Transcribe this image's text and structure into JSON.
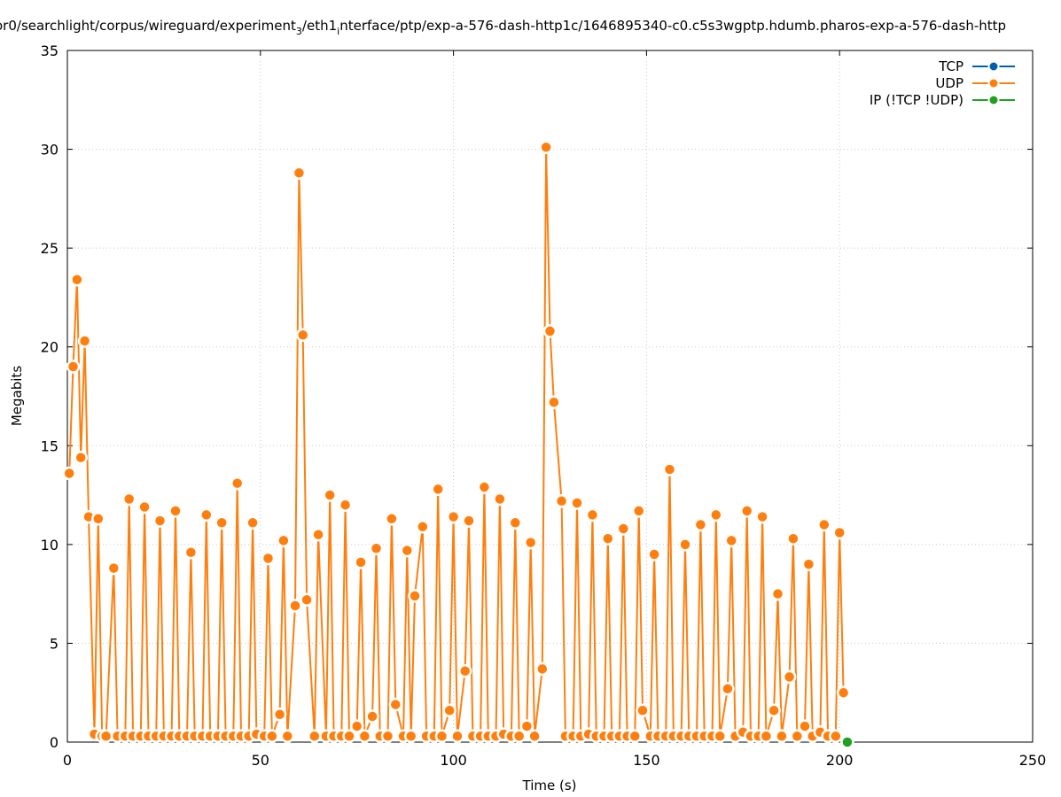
{
  "chart_data": {
    "type": "line",
    "title_parts": {
      "before_sub3": "or0/searchlight/corpus/wireguard/experiment",
      "sub3": "3",
      "after_sub3": "/eth1",
      "sub_i": "i",
      "rest": "nterface/ptp/exp-a-576-dash-http1c/1646895340-c0.c5s3wgptp.hdumb.pharos-exp-a-576-dash-http"
    },
    "xlabel": "Time (s)",
    "ylabel": "Megabits",
    "xlim": [
      0,
      250
    ],
    "ylim": [
      0,
      35
    ],
    "xticks": [
      0,
      50,
      100,
      150,
      200,
      250
    ],
    "yticks": [
      0,
      5,
      10,
      15,
      20,
      25,
      30,
      35
    ],
    "grid": true,
    "legend_position": "top-right",
    "series": [
      {
        "name": "TCP",
        "color": "#0060ad",
        "x": [],
        "y": []
      },
      {
        "name": "UDP",
        "color": "#ff7f0e",
        "x": [
          0.5,
          1.5,
          2.5,
          3.5,
          4.5,
          5.5,
          7,
          8,
          9,
          10,
          12,
          13,
          15,
          16,
          17,
          19,
          20,
          21,
          23,
          24,
          25,
          27,
          28,
          29,
          31,
          32,
          33,
          35,
          36,
          37,
          39,
          40,
          41,
          43,
          44,
          45,
          47,
          48,
          49,
          51,
          52,
          53,
          55,
          56,
          57,
          59,
          60,
          61,
          62,
          64,
          65,
          67,
          68,
          69,
          71,
          72,
          73,
          75,
          76,
          77,
          79,
          80,
          81,
          83,
          84,
          85,
          87,
          88,
          89,
          90,
          92,
          93,
          95,
          96,
          97,
          99,
          100,
          101,
          103,
          104,
          105,
          107,
          108,
          109,
          111,
          112,
          113,
          115,
          116,
          117,
          119,
          120,
          121,
          123,
          124,
          125,
          126,
          128,
          129,
          131,
          132,
          133,
          135,
          136,
          137,
          139,
          140,
          141,
          143,
          144,
          145,
          147,
          148,
          149,
          151,
          152,
          153,
          155,
          156,
          157,
          159,
          160,
          161,
          163,
          164,
          165,
          167,
          168,
          169,
          171,
          172,
          173,
          175,
          176,
          177,
          179,
          180,
          181,
          183,
          184,
          185,
          187,
          188,
          189,
          191,
          192,
          193,
          195,
          196,
          197,
          199,
          200,
          201
        ],
        "y": [
          13.6,
          19.0,
          23.4,
          14.4,
          20.3,
          11.4,
          0.4,
          11.3,
          0.3,
          0.3,
          8.8,
          0.3,
          0.3,
          12.3,
          0.3,
          0.3,
          11.9,
          0.3,
          0.3,
          11.2,
          0.3,
          0.3,
          11.7,
          0.3,
          0.3,
          9.6,
          0.3,
          0.3,
          11.5,
          0.3,
          0.3,
          11.1,
          0.3,
          0.3,
          13.1,
          0.3,
          0.3,
          11.1,
          0.4,
          0.3,
          9.3,
          0.3,
          1.4,
          10.2,
          0.3,
          6.9,
          28.8,
          20.6,
          7.2,
          0.3,
          10.5,
          0.3,
          12.5,
          0.3,
          0.3,
          12.0,
          0.3,
          0.8,
          9.1,
          0.3,
          1.3,
          9.8,
          0.3,
          0.3,
          11.3,
          1.9,
          0.3,
          9.7,
          0.3,
          7.4,
          10.9,
          0.3,
          0.3,
          12.8,
          0.3,
          1.6,
          11.4,
          0.3,
          3.6,
          11.2,
          0.3,
          0.3,
          12.9,
          0.3,
          0.3,
          12.3,
          0.4,
          0.3,
          11.1,
          0.3,
          0.8,
          10.1,
          0.3,
          3.7,
          30.1,
          20.8,
          17.2,
          12.2,
          0.3,
          0.3,
          12.1,
          0.3,
          0.4,
          11.5,
          0.3,
          0.3,
          10.3,
          0.3,
          0.3,
          10.8,
          0.3,
          0.3,
          11.7,
          1.6,
          0.3,
          9.5,
          0.3,
          0.3,
          13.8,
          0.3,
          0.3,
          10.0,
          0.3,
          0.3,
          11.0,
          0.3,
          0.3,
          11.5,
          0.3,
          2.7,
          10.2,
          0.3,
          0.5,
          11.7,
          0.3,
          0.3,
          11.4,
          0.3,
          1.6,
          7.5,
          0.3,
          3.3,
          10.3,
          0.3,
          0.8,
          9.0,
          0.3,
          0.5,
          11.0,
          0.3,
          0.3,
          10.6,
          2.5
        ]
      },
      {
        "name": "IP (!TCP  !UDP)",
        "color": "#20a020",
        "x": [
          202
        ],
        "y": [
          0
        ]
      }
    ]
  }
}
